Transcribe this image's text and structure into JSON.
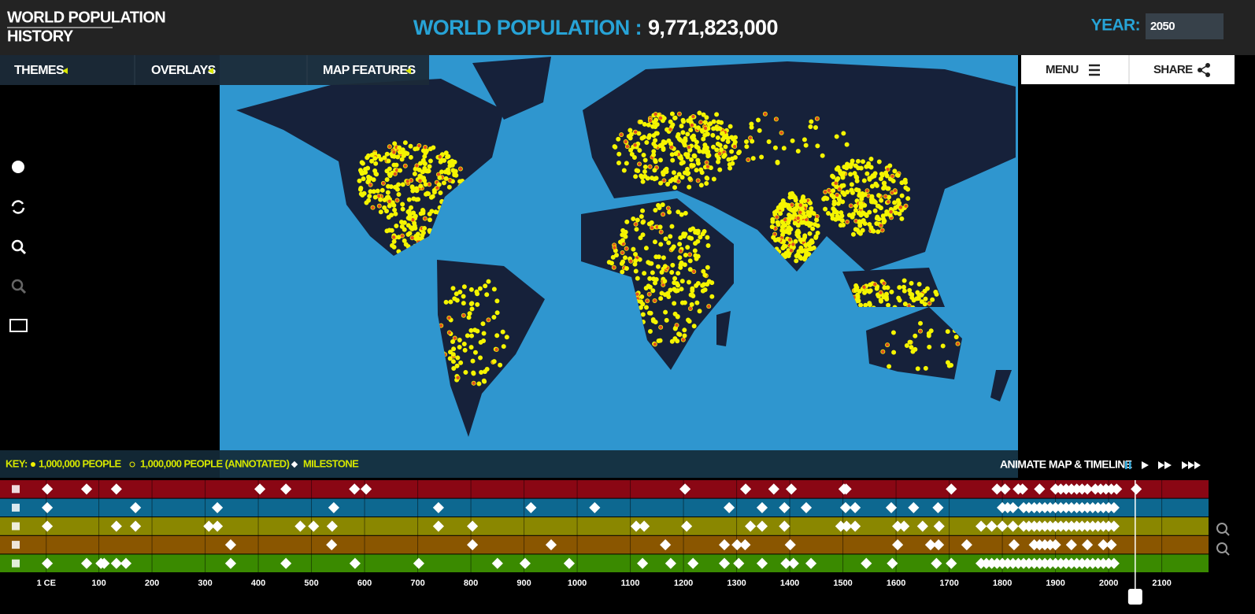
{
  "header": {
    "title": [
      "WORLD POPULATION",
      "HISTORY"
    ],
    "population_label": "WORLD POPULATION :",
    "population": "9,771,823,000",
    "year_label": "YEAR:",
    "year": "2050"
  },
  "nav": {
    "tabs": [
      "THEMES",
      "OVERLAYS",
      "MAP FEATURES"
    ],
    "menu": "MENU",
    "share": "SHARE"
  },
  "key": {
    "label": "KEY:",
    "items": [
      "1,000,000 PEOPLE",
      "1,000,000 PEOPLE (ANNOTATED)",
      "MILESTONE"
    ]
  },
  "animate": {
    "label": "ANIMATE MAP & TIMELINE"
  },
  "timeline": {
    "xlim": [
      -86,
      2188
    ],
    "xticks": [
      {
        "value": 1,
        "label": "1 CE"
      },
      100,
      200,
      300,
      400,
      500,
      600,
      700,
      800,
      900,
      1000,
      1100,
      1200,
      1300,
      1400,
      1500,
      1600,
      1700,
      1800,
      1900,
      2000,
      2100
    ],
    "marker": 2050,
    "rows": [
      {
        "color": "#8a0714",
        "milestones": [
          3,
          77,
          133,
          403,
          452,
          581,
          603,
          1203,
          1317,
          1370,
          1403,
          1502,
          1506,
          1704,
          1790,
          1805,
          1830,
          1838,
          1870,
          1900,
          1910,
          1920,
          1930,
          1940,
          1950,
          1960,
          1975,
          1985,
          1995,
          2005,
          2015,
          2052
        ]
      },
      {
        "color": "#0d6890",
        "milestones": [
          3,
          169,
          323,
          542,
          739,
          913,
          1033,
          1286,
          1348,
          1390,
          1431,
          1505,
          1523,
          1591,
          1633,
          1679,
          1800,
          1810,
          1820,
          1840,
          1850,
          1860,
          1870,
          1880,
          1890,
          1900,
          1910,
          1920,
          1930,
          1940,
          1950,
          1960,
          1970,
          1980,
          1990,
          2000,
          2010
        ]
      },
      {
        "color": "#8a8700",
        "milestones": [
          3,
          133,
          169,
          307,
          323,
          479,
          504,
          539,
          739,
          803,
          1111,
          1126,
          1206,
          1326,
          1348,
          1390,
          1496,
          1507,
          1523,
          1603,
          1615,
          1650,
          1681,
          1760,
          1780,
          1800,
          1820,
          1840,
          1850,
          1860,
          1870,
          1880,
          1890,
          1900,
          1910,
          1920,
          1930,
          1940,
          1950,
          1960,
          1970,
          1980,
          1990,
          2000,
          2010
        ]
      },
      {
        "color": "#8a5600",
        "milestones": [
          348,
          538,
          803,
          951,
          1166,
          1277,
          1301,
          1316,
          1401,
          1603,
          1665,
          1680,
          1733,
          1822,
          1860,
          1870,
          1880,
          1890,
          1900,
          1930,
          1960,
          1990,
          2005
        ]
      },
      {
        "color": "#3a8a00",
        "milestones": [
          3,
          77,
          104,
          110,
          133,
          151,
          348,
          452,
          582,
          702,
          850,
          902,
          985,
          1123,
          1176,
          1218,
          1277,
          1304,
          1348,
          1393,
          1407,
          1440,
          1544,
          1593,
          1676,
          1704,
          1760,
          1770,
          1780,
          1790,
          1800,
          1810,
          1820,
          1830,
          1840,
          1850,
          1860,
          1870,
          1880,
          1890,
          1900,
          1910,
          1920,
          1930,
          1940,
          1950,
          1960,
          1970,
          1980,
          1990,
          2000,
          2010
        ]
      }
    ]
  }
}
